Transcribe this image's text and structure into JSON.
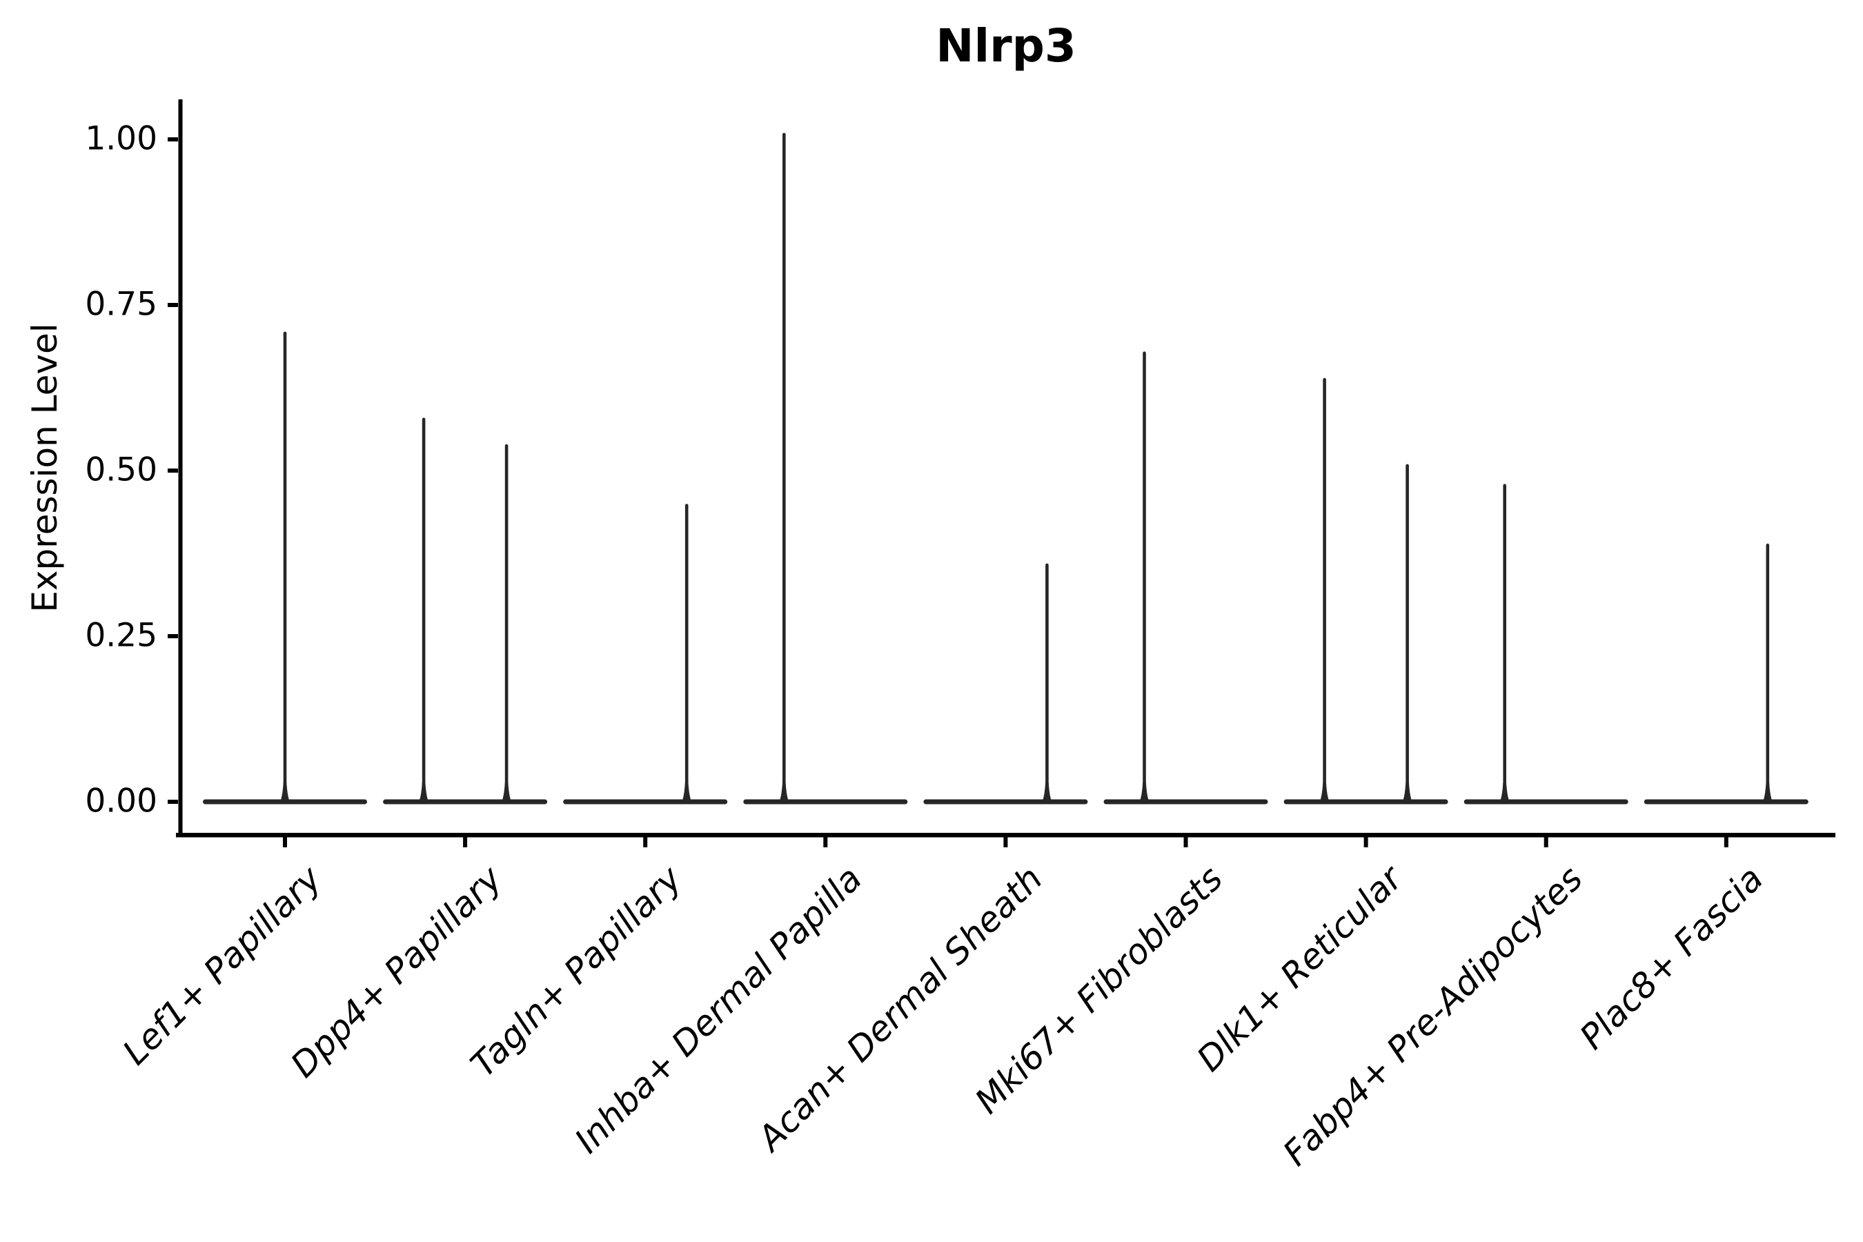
{
  "title": "Nlrp3",
  "y_axis": {
    "label": "Expression Level",
    "tick_labels": [
      "1.00",
      "0.75",
      "0.50",
      "0.25",
      "0.00"
    ],
    "tick_values": [
      1.0,
      0.75,
      0.5,
      0.25,
      0.0
    ]
  },
  "x_axis": {
    "categories": [
      "Lef1+ Papillary",
      "Dpp4+ Papillary",
      "Tagln+ Papillary",
      "Inhba+ Dermal Papilla",
      "Acan+ Dermal Sheath",
      "Mki67+ Fibroblasts",
      "Dlk1+ Reticular",
      "Fabp4+ Pre-Adipocytes",
      "Plac8+ Fascia"
    ]
  },
  "colors": {
    "violin": "#262626",
    "axis": "#000000",
    "text": "#000000",
    "background": "#ffffff"
  },
  "chart_data": {
    "type": "violin",
    "title": "Nlrp3",
    "xlabel": "",
    "ylabel": "Expression Level",
    "ylim": [
      -0.05,
      1.06
    ],
    "yticks": [
      0.0,
      0.25,
      0.5,
      0.75,
      1.0
    ],
    "grid": false,
    "legend": false,
    "baseline_value": 0,
    "categories": [
      "Lef1+ Papillary",
      "Dpp4+ Papillary",
      "Tagln+ Papillary",
      "Inhba+ Dermal Papilla",
      "Acan+ Dermal Sheath",
      "Mki67+ Fibroblasts",
      "Dlk1+ Reticular",
      "Fabp4+ Pre-Adipocytes",
      "Plac8+ Fascia"
    ],
    "violins": [
      {
        "category": "Lef1+ Papillary",
        "spikes": [
          {
            "side": "center",
            "max": 0.71
          }
        ]
      },
      {
        "category": "Dpp4+ Papillary",
        "spikes": [
          {
            "side": "left",
            "max": 0.58
          },
          {
            "side": "right",
            "max": 0.54
          }
        ]
      },
      {
        "category": "Tagln+ Papillary",
        "spikes": [
          {
            "side": "right",
            "max": 0.45
          }
        ]
      },
      {
        "category": "Inhba+ Dermal Papilla",
        "spikes": [
          {
            "side": "left",
            "max": 1.01
          }
        ]
      },
      {
        "category": "Acan+ Dermal Sheath",
        "spikes": [
          {
            "side": "right",
            "max": 0.36
          }
        ]
      },
      {
        "category": "Mki67+ Fibroblasts",
        "spikes": [
          {
            "side": "left",
            "max": 0.68
          }
        ]
      },
      {
        "category": "Dlk1+ Reticular",
        "spikes": [
          {
            "side": "left",
            "max": 0.64
          },
          {
            "side": "right",
            "max": 0.51
          }
        ]
      },
      {
        "category": "Fabp4+ Pre-Adipocytes",
        "spikes": [
          {
            "side": "left",
            "max": 0.48
          }
        ]
      },
      {
        "category": "Plac8+ Fascia",
        "spikes": [
          {
            "side": "right",
            "max": 0.39
          }
        ]
      }
    ]
  }
}
